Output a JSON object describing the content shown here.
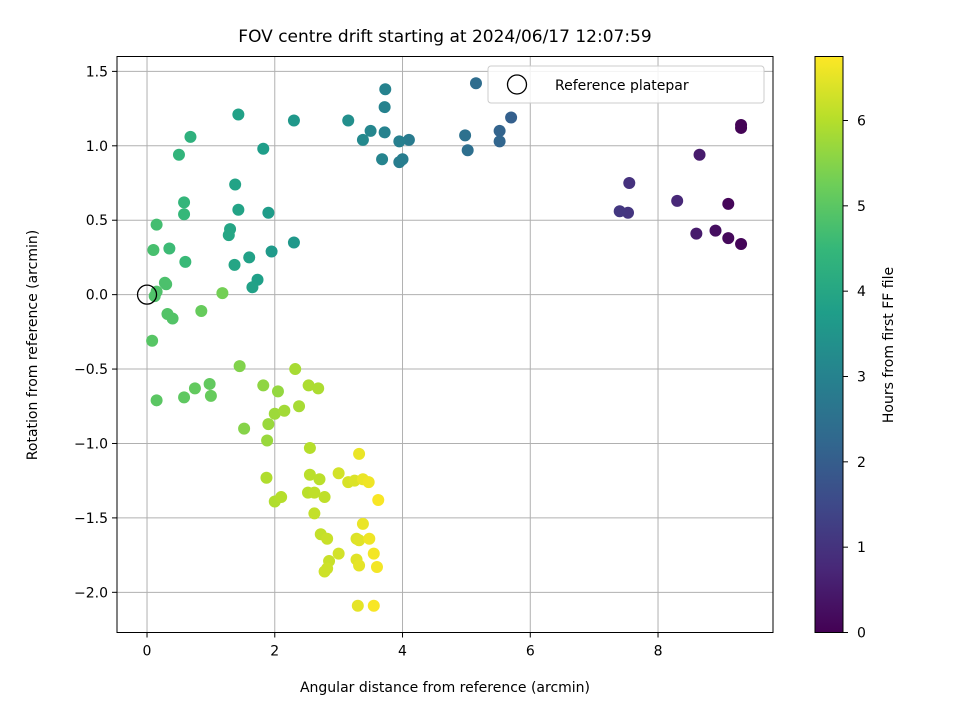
{
  "chart_data": {
    "type": "scatter",
    "title": "FOV centre drift starting at 2024/06/17 12:07:59",
    "xlabel": "Angular distance from reference (arcmin)",
    "ylabel": "Rotation from reference (arcmin)",
    "xlim": [
      -0.47,
      9.8
    ],
    "ylim": [
      -2.27,
      1.6
    ],
    "x_ticks": [
      0,
      2,
      4,
      6,
      8
    ],
    "x_tick_labels": [
      "0",
      "2",
      "4",
      "6",
      "8"
    ],
    "y_ticks": [
      1.5,
      1.0,
      0.5,
      0.0,
      -0.5,
      -1.0,
      -1.5,
      -2.0
    ],
    "y_tick_labels": [
      "1.5",
      "1.0",
      "0.5",
      "0.0",
      "−0.5",
      "−1.0",
      "−1.5",
      "−2.0"
    ],
    "grid": true,
    "legend": {
      "position": "top-right",
      "entries": [
        "Reference platepar"
      ]
    },
    "reference_point": {
      "x": 0,
      "y": 0
    },
    "colorbar": {
      "label": "Hours from first FF file",
      "range": [
        0,
        6.75
      ],
      "ticks": [
        0,
        1,
        2,
        3,
        4,
        5,
        6
      ],
      "tick_labels": [
        "0",
        "1",
        "2",
        "3",
        "4",
        "5",
        "6"
      ],
      "colormap_stops": [
        "#440154",
        "#482878",
        "#3e4989",
        "#31688e",
        "#26828e",
        "#1f9e89",
        "#35b779",
        "#6ece58",
        "#b5de2b",
        "#fde725"
      ]
    },
    "series": [
      {
        "points": [
          [
            9.3,
            1.12,
            0.05
          ],
          [
            9.3,
            1.14,
            0.05
          ],
          [
            9.3,
            0.34,
            0.08
          ],
          [
            9.1,
            0.61,
            0.1
          ],
          [
            9.1,
            0.38,
            0.15
          ],
          [
            8.9,
            0.43,
            0.25
          ],
          [
            8.65,
            0.94,
            0.5
          ],
          [
            8.6,
            0.41,
            0.5
          ],
          [
            8.3,
            0.63,
            0.75
          ],
          [
            7.55,
            0.75,
            0.95
          ],
          [
            7.53,
            0.55,
            1.05
          ],
          [
            7.4,
            0.56,
            1.1
          ],
          [
            5.7,
            1.19,
            2.05
          ],
          [
            5.52,
            1.1,
            2.15
          ],
          [
            5.52,
            1.03,
            2.2
          ],
          [
            5.15,
            1.42,
            2.4
          ],
          [
            5.02,
            0.97,
            2.45
          ],
          [
            4.98,
            1.07,
            2.5
          ],
          [
            4.1,
            1.04,
            2.8
          ],
          [
            4.0,
            0.91,
            2.85
          ],
          [
            3.95,
            0.89,
            2.85
          ],
          [
            3.95,
            1.03,
            2.9
          ],
          [
            3.73,
            1.38,
            3.0
          ],
          [
            3.72,
            1.26,
            3.0
          ],
          [
            3.72,
            1.09,
            3.0
          ],
          [
            3.68,
            0.91,
            3.05
          ],
          [
            3.5,
            1.1,
            3.1
          ],
          [
            3.38,
            1.04,
            3.2
          ],
          [
            3.15,
            1.17,
            3.35
          ],
          [
            2.3,
            1.17,
            3.6
          ],
          [
            2.3,
            0.35,
            3.6
          ],
          [
            1.95,
            0.29,
            3.65
          ],
          [
            1.9,
            0.55,
            3.7
          ],
          [
            1.82,
            0.98,
            3.75
          ],
          [
            1.73,
            0.1,
            3.8
          ],
          [
            1.65,
            0.05,
            3.85
          ],
          [
            1.6,
            0.25,
            3.85
          ],
          [
            1.43,
            1.21,
            3.85
          ],
          [
            1.43,
            0.57,
            3.9
          ],
          [
            1.38,
            0.74,
            3.9
          ],
          [
            1.37,
            0.2,
            3.95
          ],
          [
            1.3,
            0.44,
            3.95
          ],
          [
            1.28,
            0.4,
            4.0
          ],
          [
            0.68,
            1.06,
            4.3
          ],
          [
            0.5,
            0.94,
            4.4
          ],
          [
            0.58,
            0.62,
            4.45
          ],
          [
            0.58,
            0.54,
            4.5
          ],
          [
            0.6,
            0.22,
            4.55
          ],
          [
            0.35,
            0.31,
            4.6
          ],
          [
            0.15,
            0.47,
            4.7
          ],
          [
            0.1,
            0.3,
            4.75
          ],
          [
            0.28,
            0.08,
            4.8
          ],
          [
            0.3,
            0.07,
            4.8
          ],
          [
            0.15,
            0.02,
            4.85
          ],
          [
            0.12,
            -0.01,
            4.85
          ],
          [
            0.32,
            -0.13,
            4.9
          ],
          [
            0.4,
            -0.16,
            4.9
          ],
          [
            0.08,
            -0.31,
            4.95
          ],
          [
            0.15,
            -0.71,
            5.0
          ],
          [
            0.58,
            -0.69,
            5.05
          ],
          [
            0.75,
            -0.63,
            5.1
          ],
          [
            0.98,
            -0.6,
            5.1
          ],
          [
            1.0,
            -0.68,
            5.15
          ],
          [
            0.85,
            -0.11,
            5.15
          ],
          [
            1.18,
            0.01,
            5.3
          ],
          [
            1.45,
            -0.48,
            5.45
          ],
          [
            1.52,
            -0.9,
            5.5
          ],
          [
            1.82,
            -0.61,
            5.6
          ],
          [
            2.05,
            -0.65,
            5.65
          ],
          [
            1.88,
            -0.98,
            5.7
          ],
          [
            1.9,
            -0.87,
            5.7
          ],
          [
            2.0,
            -0.8,
            5.75
          ],
          [
            2.15,
            -0.78,
            5.8
          ],
          [
            2.38,
            -0.75,
            5.85
          ],
          [
            2.32,
            -0.5,
            5.85
          ],
          [
            2.53,
            -0.61,
            5.9
          ],
          [
            2.68,
            -0.63,
            5.9
          ],
          [
            1.87,
            -1.23,
            5.95
          ],
          [
            2.0,
            -1.39,
            5.95
          ],
          [
            2.1,
            -1.36,
            6.0
          ],
          [
            2.55,
            -1.03,
            6.0
          ],
          [
            2.55,
            -1.21,
            6.05
          ],
          [
            2.52,
            -1.33,
            6.05
          ],
          [
            2.7,
            -1.24,
            6.05
          ],
          [
            2.62,
            -1.33,
            6.1
          ],
          [
            2.78,
            -1.36,
            6.1
          ],
          [
            2.62,
            -1.47,
            6.15
          ],
          [
            2.72,
            -1.61,
            6.15
          ],
          [
            2.82,
            -1.64,
            6.2
          ],
          [
            2.85,
            -1.79,
            6.2
          ],
          [
            2.82,
            -1.84,
            6.25
          ],
          [
            2.78,
            -1.86,
            6.25
          ],
          [
            3.0,
            -1.2,
            6.3
          ],
          [
            3.0,
            -1.74,
            6.3
          ],
          [
            3.15,
            -1.26,
            6.35
          ],
          [
            3.25,
            -1.25,
            6.4
          ],
          [
            3.28,
            -1.64,
            6.4
          ],
          [
            3.32,
            -1.65,
            6.45
          ],
          [
            3.28,
            -1.78,
            6.45
          ],
          [
            3.32,
            -1.82,
            6.5
          ],
          [
            3.3,
            -2.09,
            6.5
          ],
          [
            3.32,
            -1.07,
            6.55
          ],
          [
            3.38,
            -1.24,
            6.55
          ],
          [
            3.38,
            -1.54,
            6.55
          ],
          [
            3.47,
            -1.26,
            6.6
          ],
          [
            3.48,
            -1.64,
            6.6
          ],
          [
            3.55,
            -1.74,
            6.65
          ],
          [
            3.6,
            -1.83,
            6.65
          ],
          [
            3.62,
            -1.38,
            6.7
          ],
          [
            3.55,
            -2.09,
            6.7
          ]
        ]
      }
    ]
  }
}
